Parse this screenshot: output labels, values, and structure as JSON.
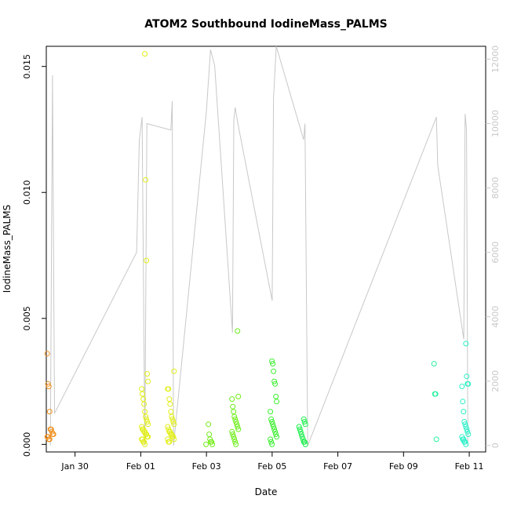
{
  "chart_data": {
    "type": "scatter",
    "title": "ATOM2 Southbound IodineMass_PALMS",
    "xlabel": "Date",
    "ylabel": "IodineMass_PALMS",
    "x_ticks": [
      "Jan 30",
      "Feb 01",
      "Feb 03",
      "Feb 05",
      "Feb 07",
      "Feb 09",
      "Feb 11"
    ],
    "y_ticks": [
      "0.000",
      "0.005",
      "0.010",
      "0.015"
    ],
    "y2_ticks": [
      "0",
      "2000",
      "4000",
      "6000",
      "8000",
      "10000",
      "12000"
    ],
    "xlim": [
      "2017-01-29 03:00",
      "2017-02-11 12:00"
    ],
    "ylim": [
      -0.0003,
      0.0158
    ],
    "y2lim": [
      -200,
      12400
    ],
    "right_axis_color": "#c8c8c8",
    "altitude_line_color": "#c8c8c8",
    "grid": false,
    "legend": "none",
    "point_series": [
      {
        "color": "#f0901e",
        "x": "2017-01-29 06:00",
        "y": [
          0.0036,
          0.0024,
          0.0023,
          0.0013,
          0.0006,
          0.0006,
          0.0005,
          0.0004,
          0.0004,
          0.0003,
          0.0003,
          0.0002,
          0.0002
        ]
      },
      {
        "color": "#e2ee18",
        "x": "2017-02-01 03:00",
        "y": [
          0.0155,
          0.0105,
          0.0073,
          0.0028,
          0.0025,
          0.0022,
          0.002,
          0.0018,
          0.0016,
          0.0013,
          0.0011,
          0.001,
          0.0009,
          0.0008,
          0.0007,
          0.0006,
          0.0006,
          0.0005,
          0.0005,
          0.0004,
          0.0004,
          0.0003,
          0.0003,
          0.0002,
          0.0002,
          0.0001,
          0.0001,
          0.0
        ]
      },
      {
        "color": "#e2ee18",
        "x": "2017-02-01 22:00",
        "y": [
          0.0029,
          0.0022,
          0.0022,
          0.0018,
          0.0016,
          0.0013,
          0.0011,
          0.001,
          0.0009,
          0.0008,
          0.0007,
          0.0006,
          0.0005,
          0.0005,
          0.0004,
          0.0004,
          0.0003,
          0.0003,
          0.0002,
          0.0002,
          0.0001,
          0.0001
        ]
      },
      {
        "color": "#74ec18",
        "x": "2017-02-03 02:00",
        "y": [
          0.0008,
          0.0004,
          0.0002,
          0.0001,
          0.0001,
          0.0,
          0.0
        ]
      },
      {
        "color": "#6cee18",
        "x": "2017-02-03 21:00",
        "y": [
          0.0045,
          0.0019,
          0.0018,
          0.0015,
          0.0013,
          0.0011,
          0.001,
          0.0009,
          0.0008,
          0.0007,
          0.0006,
          0.0005,
          0.0004,
          0.0003,
          0.0002,
          0.0001,
          0.0
        ]
      },
      {
        "color": "#3cee30",
        "x": "2017-02-05 01:00",
        "y": [
          0.0033,
          0.0032,
          0.0029,
          0.0025,
          0.0024,
          0.0019,
          0.0017,
          0.0013,
          0.001,
          0.0009,
          0.0008,
          0.0007,
          0.0006,
          0.0005,
          0.0004,
          0.0003,
          0.0002,
          0.0001,
          0.0
        ]
      },
      {
        "color": "#18ee48",
        "x": "2017-02-05 22:00",
        "y": [
          0.001,
          0.0009,
          0.0008,
          0.0007,
          0.0006,
          0.0005,
          0.0004,
          0.0003,
          0.0002,
          0.0001,
          0.0001,
          0.0
        ]
      },
      {
        "color": "#2af0a0",
        "x": "2017-02-10 00:00",
        "y": [
          0.0032,
          0.002,
          0.002,
          0.0002
        ]
      },
      {
        "color": "#2af0c8",
        "x": "2017-02-10 21:00",
        "y": [
          0.004,
          0.0027,
          0.0024,
          0.0024,
          0.0023,
          0.0017,
          0.0013,
          0.0009,
          0.0008,
          0.0007,
          0.0006,
          0.0005,
          0.0004,
          0.0003,
          0.0002,
          0.0002,
          0.0001,
          0.0001,
          0.0
        ]
      }
    ],
    "altitude_series": [
      {
        "x": "2017-01-29 06:00",
        "y": 0
      },
      {
        "x": "2017-01-29 07:30",
        "y": 11500
      },
      {
        "x": "2017-01-29 09:00",
        "y": 1000
      },
      {
        "x": "2017-01-31 21:00",
        "y": 6000
      },
      {
        "x": "2017-01-31 23:00",
        "y": 9500
      },
      {
        "x": "2017-02-01 01:00",
        "y": 10200
      },
      {
        "x": "2017-02-01 03:00",
        "y": 0
      },
      {
        "x": "2017-02-01 04:30",
        "y": 10000
      },
      {
        "x": "2017-02-01 22:00",
        "y": 9800
      },
      {
        "x": "2017-02-01 23:00",
        "y": 10700
      },
      {
        "x": "2017-02-02 00:00",
        "y": 0
      },
      {
        "x": "2017-02-03 00:00",
        "y": 10400
      },
      {
        "x": "2017-02-03 03:00",
        "y": 12300
      },
      {
        "x": "2017-02-03 06:00",
        "y": 11800
      },
      {
        "x": "2017-02-03 19:00",
        "y": 3500
      },
      {
        "x": "2017-02-03 20:00",
        "y": 10100
      },
      {
        "x": "2017-02-03 21:00",
        "y": 10500
      },
      {
        "x": "2017-02-03 23:00",
        "y": 10000
      },
      {
        "x": "2017-02-05 00:00",
        "y": 4500
      },
      {
        "x": "2017-02-05 01:00",
        "y": 10800
      },
      {
        "x": "2017-02-05 03:00",
        "y": 12400
      },
      {
        "x": "2017-02-05 23:00",
        "y": 9500
      },
      {
        "x": "2017-02-06 00:00",
        "y": 10000
      },
      {
        "x": "2017-02-06 02:00",
        "y": 0
      },
      {
        "x": "2017-02-10 00:00",
        "y": 10200
      },
      {
        "x": "2017-02-10 01:00",
        "y": 8700
      },
      {
        "x": "2017-02-10 20:00",
        "y": 3300
      },
      {
        "x": "2017-02-10 21:00",
        "y": 10300
      },
      {
        "x": "2017-02-10 22:00",
        "y": 9800
      },
      {
        "x": "2017-02-10 23:00",
        "y": 0
      }
    ]
  }
}
